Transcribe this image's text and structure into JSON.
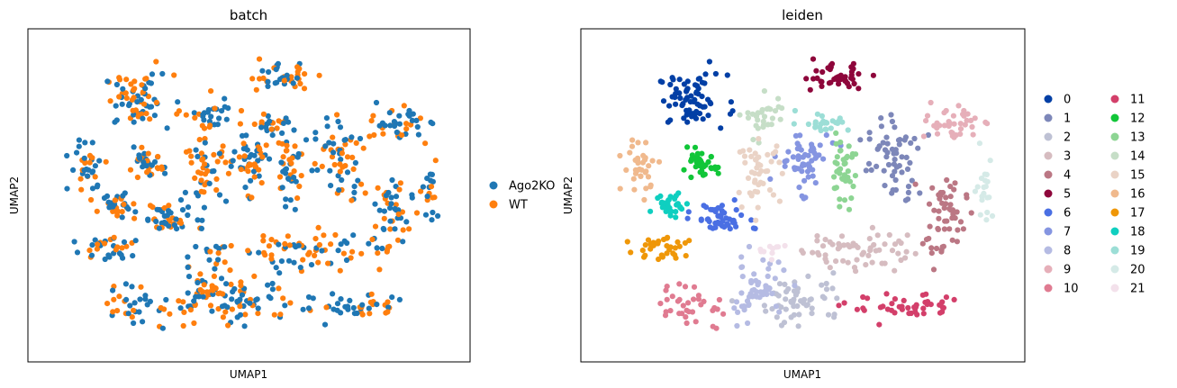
{
  "panels": [
    {
      "title": "batch",
      "xlabel": "UMAP1",
      "ylabel": "UMAP2",
      "legend": [
        {
          "label": "Ago2KO",
          "color": "#1f77b4"
        },
        {
          "label": "WT",
          "color": "#ff7f0e"
        }
      ]
    },
    {
      "title": "leiden",
      "xlabel": "UMAP1",
      "ylabel": "UMAP2",
      "legend": [
        {
          "label": "0",
          "color": "#023fa5"
        },
        {
          "label": "1",
          "color": "#7d87b9"
        },
        {
          "label": "2",
          "color": "#bec1d4"
        },
        {
          "label": "3",
          "color": "#d6bcc0"
        },
        {
          "label": "4",
          "color": "#bb7784"
        },
        {
          "label": "5",
          "color": "#8e063b"
        },
        {
          "label": "6",
          "color": "#4a6fe3"
        },
        {
          "label": "7",
          "color": "#8595e1"
        },
        {
          "label": "8",
          "color": "#b5bbe3"
        },
        {
          "label": "9",
          "color": "#e6afb9"
        },
        {
          "label": "10",
          "color": "#e07b91"
        },
        {
          "label": "11",
          "color": "#d33f6a"
        },
        {
          "label": "12",
          "color": "#11c638"
        },
        {
          "label": "13",
          "color": "#8dd593"
        },
        {
          "label": "14",
          "color": "#c6dec7"
        },
        {
          "label": "15",
          "color": "#ead3c6"
        },
        {
          "label": "16",
          "color": "#f0b98d"
        },
        {
          "label": "17",
          "color": "#ef9708"
        },
        {
          "label": "18",
          "color": "#0fcfc0"
        },
        {
          "label": "19",
          "color": "#9cded6"
        },
        {
          "label": "20",
          "color": "#d5eae7"
        },
        {
          "label": "21",
          "color": "#f3e1eb"
        }
      ]
    }
  ],
  "chart_data": [
    {
      "type": "scatter",
      "title": "batch",
      "xlabel": "UMAP1",
      "ylabel": "UMAP2",
      "xlim": [
        0,
        100
      ],
      "ylim": [
        0,
        100
      ],
      "grid": false,
      "legend_position": "right",
      "series": [
        {
          "name": "Ago2KO",
          "color": "#1f77b4",
          "approx_points": 620
        },
        {
          "name": "WT",
          "color": "#ff7f0e",
          "approx_points": 520
        }
      ]
    },
    {
      "type": "scatter",
      "title": "leiden",
      "xlabel": "UMAP1",
      "ylabel": "UMAP2",
      "xlim": [
        0,
        100
      ],
      "ylim": [
        0,
        100
      ],
      "grid": false,
      "legend_position": "right",
      "clusters": [
        {
          "name": "0",
          "color": "#023fa5",
          "center": [
            22,
            82
          ],
          "spread": [
            8,
            8
          ],
          "n": 70
        },
        {
          "name": "1",
          "color": "#7d87b9",
          "center": [
            73,
            62
          ],
          "spread": [
            6,
            13
          ],
          "n": 60
        },
        {
          "name": "2",
          "color": "#bec1d4",
          "center": [
            50,
            15
          ],
          "spread": [
            10,
            8
          ],
          "n": 55
        },
        {
          "name": "3",
          "color": "#d6bcc0",
          "center": [
            63,
            32
          ],
          "spread": [
            12,
            7
          ],
          "n": 60
        },
        {
          "name": "4",
          "color": "#bb7784",
          "center": [
            86,
            42
          ],
          "spread": [
            5,
            13
          ],
          "n": 55
        },
        {
          "name": "5",
          "color": "#8e063b",
          "center": [
            58,
            90
          ],
          "spread": [
            8,
            4
          ],
          "n": 40
        },
        {
          "name": "6",
          "color": "#4a6fe3",
          "center": [
            29,
            42
          ],
          "spread": [
            6,
            5
          ],
          "n": 45
        },
        {
          "name": "7",
          "color": "#8595e1",
          "center": [
            50,
            62
          ],
          "spread": [
            6,
            9
          ],
          "n": 55
        },
        {
          "name": "8",
          "color": "#b5bbe3",
          "center": [
            38,
            18
          ],
          "spread": [
            7,
            9
          ],
          "n": 55
        },
        {
          "name": "9",
          "color": "#e6afb9",
          "center": [
            88,
            74
          ],
          "spread": [
            6,
            6
          ],
          "n": 40
        },
        {
          "name": "10",
          "color": "#e07b91",
          "center": [
            22,
            12
          ],
          "spread": [
            8,
            7
          ],
          "n": 35
        },
        {
          "name": "11",
          "color": "#d33f6a",
          "center": [
            77,
            12
          ],
          "spread": [
            14,
            4
          ],
          "n": 45
        },
        {
          "name": "12",
          "color": "#11c638",
          "center": [
            24,
            60
          ],
          "spread": [
            4,
            4
          ],
          "n": 40
        },
        {
          "name": "13",
          "color": "#8dd593",
          "center": [
            60,
            58
          ],
          "spread": [
            3,
            9
          ],
          "n": 40
        },
        {
          "name": "14",
          "color": "#c6dec7",
          "center": [
            40,
            76
          ],
          "spread": [
            5,
            8
          ],
          "n": 30
        },
        {
          "name": "15",
          "color": "#ead3c6",
          "center": [
            39,
            58
          ],
          "spread": [
            5,
            9
          ],
          "n": 45
        },
        {
          "name": "16",
          "color": "#f0b98d",
          "center": [
            9,
            60
          ],
          "spread": [
            4,
            8
          ],
          "n": 35
        },
        {
          "name": "17",
          "color": "#ef9708",
          "center": [
            15,
            32
          ],
          "spread": [
            9,
            5
          ],
          "n": 35
        },
        {
          "name": "18",
          "color": "#0fcfc0",
          "center": [
            17,
            47
          ],
          "spread": [
            4,
            4
          ],
          "n": 30
        },
        {
          "name": "19",
          "color": "#9cded6",
          "center": [
            55,
            75
          ],
          "spread": [
            6,
            3
          ],
          "n": 25
        },
        {
          "name": "20",
          "color": "#d5eae7",
          "center": [
            96,
            52
          ],
          "spread": [
            2,
            10
          ],
          "n": 20
        },
        {
          "name": "21",
          "color": "#f3e1eb",
          "center": [
            42,
            32
          ],
          "spread": [
            3,
            2
          ],
          "n": 10
        }
      ]
    }
  ]
}
